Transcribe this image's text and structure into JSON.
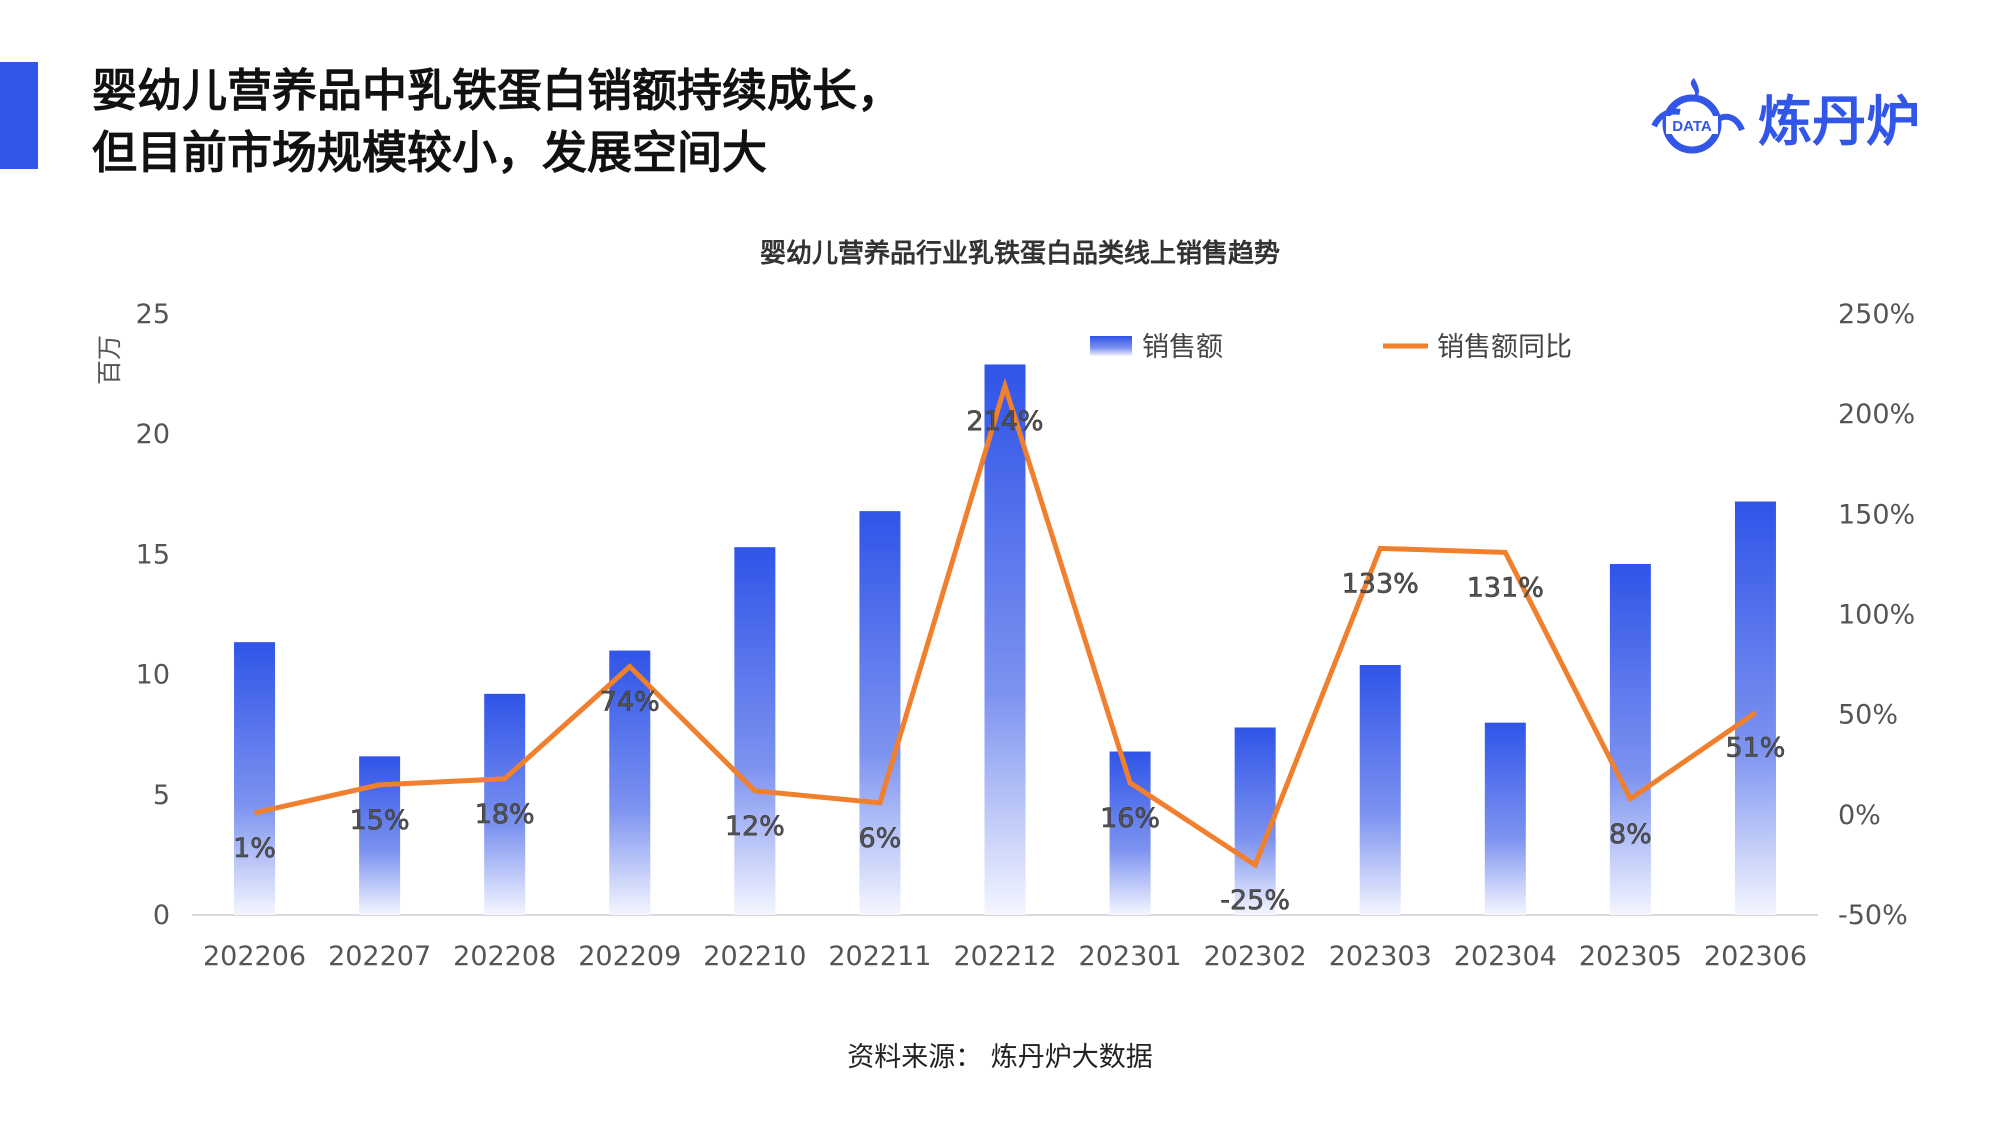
{
  "header": {
    "title_line1": "婴幼儿营养品中乳铁蛋白销额持续成长，",
    "title_line2": "但目前市场规模较小，发展空间大",
    "logo_text": "炼丹炉",
    "logo_badge": "DATA"
  },
  "source": "资料来源： 炼丹炉大数据",
  "colors": {
    "bar": "#3256e8",
    "line": "#f07f2e",
    "accent": "#3256e8"
  },
  "chart_data": {
    "type": "bar+line",
    "title": "婴幼儿营养品行业乳铁蛋白品类线上销售趋势",
    "ylabel": "百万",
    "categories": [
      "202206",
      "202207",
      "202208",
      "202209",
      "202210",
      "202211",
      "202212",
      "202301",
      "202302",
      "202303",
      "202304",
      "202305",
      "202306"
    ],
    "series": [
      {
        "name": "销售额",
        "type": "bar",
        "axis": "left",
        "values": [
          11.35,
          6.6,
          9.2,
          11.0,
          15.3,
          16.8,
          22.9,
          6.8,
          7.8,
          10.4,
          8.0,
          14.6,
          17.2
        ]
      },
      {
        "name": "销售额同比",
        "type": "line",
        "axis": "right",
        "values": [
          1,
          15,
          18,
          74,
          12,
          6,
          214,
          16,
          -25,
          133,
          131,
          8,
          51
        ],
        "labels": [
          "1%",
          "15%",
          "18%",
          "74%",
          "12%",
          "6%",
          "214%",
          "16%",
          "-25%",
          "133%",
          "131%",
          "8%",
          "51%"
        ]
      }
    ],
    "ylim_left": [
      0,
      25
    ],
    "yticks_left": [
      "0",
      "5",
      "10",
      "15",
      "20",
      "25"
    ],
    "ylim_right": [
      -50,
      250
    ],
    "yticks_right": [
      "-50%",
      "0%",
      "50%",
      "100%",
      "150%",
      "200%",
      "250%"
    ],
    "legend_position": "top-right",
    "grid": false
  }
}
